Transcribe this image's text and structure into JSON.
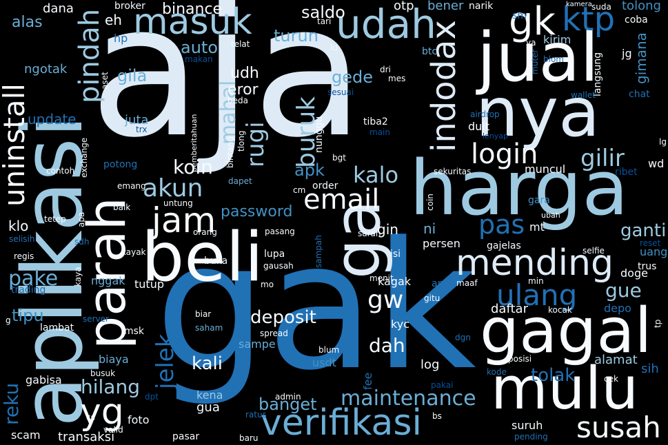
{
  "palette": {
    "white": "#f7fbff",
    "pale": "#deebf7",
    "light": "#9ecae1",
    "mid": "#6baed6",
    "blue": "#4292c6",
    "deep": "#2171b5",
    "navy": "#08519c",
    "dark": "#08306b"
  },
  "words": [
    {
      "text": "aja",
      "color": "pale"
    },
    {
      "text": "gak",
      "color": "deep"
    },
    {
      "text": "harga",
      "color": "light"
    },
    {
      "text": "aplikasi",
      "color": "light"
    },
    {
      "text": "beli",
      "color": "white"
    },
    {
      "text": "nya",
      "color": "pale"
    },
    {
      "text": "jual",
      "color": "white"
    },
    {
      "text": "gagal",
      "color": "white"
    },
    {
      "text": "mulu",
      "color": "white"
    },
    {
      "text": "parah",
      "color": "white"
    },
    {
      "text": "verifikasi",
      "color": "mid"
    },
    {
      "text": "mending",
      "color": "pale"
    },
    {
      "text": "udah",
      "color": "light"
    },
    {
      "text": "masuk",
      "color": "light"
    },
    {
      "text": "ga",
      "color": "pale"
    },
    {
      "text": "indodax",
      "color": "pale"
    },
    {
      "text": "gk",
      "color": "white"
    },
    {
      "text": "ktp",
      "color": "deep"
    },
    {
      "text": "uninstall",
      "color": "white"
    },
    {
      "text": "pindah",
      "color": "light"
    },
    {
      "text": "susah",
      "color": "white"
    },
    {
      "text": "yg",
      "color": "white"
    },
    {
      "text": "jam",
      "color": "white"
    },
    {
      "text": "email",
      "color": "white"
    },
    {
      "text": "akun",
      "color": "light"
    },
    {
      "text": "maintenance",
      "color": "mid"
    },
    {
      "text": "login",
      "color": "white"
    },
    {
      "text": "ulang",
      "color": "deep"
    },
    {
      "text": "gw",
      "color": "white"
    },
    {
      "text": "rugi",
      "color": "light"
    },
    {
      "text": "jelek",
      "color": "deep"
    },
    {
      "text": "pas",
      "color": "deep"
    },
    {
      "text": "buruk",
      "color": "light"
    },
    {
      "text": "gilir",
      "color": "light"
    },
    {
      "text": "hilang",
      "color": "light"
    },
    {
      "text": "kalo",
      "color": "light"
    },
    {
      "text": "koin",
      "color": "white"
    },
    {
      "text": "mahal",
      "color": "light"
    },
    {
      "text": "deposit",
      "color": "white"
    },
    {
      "text": "banget",
      "color": "mid"
    },
    {
      "text": "ganti",
      "color": "light"
    },
    {
      "text": "reku",
      "color": "deep"
    },
    {
      "text": "pake",
      "color": "mid"
    },
    {
      "text": "password",
      "color": "blue"
    },
    {
      "text": "dah",
      "color": "white"
    },
    {
      "text": "kali",
      "color": "white"
    },
    {
      "text": "apk",
      "color": "blue"
    },
    {
      "text": "gue",
      "color": "light"
    },
    {
      "text": "tolak",
      "color": "deep"
    },
    {
      "text": "gila",
      "color": "mid"
    },
    {
      "text": "auto",
      "color": "mid"
    },
    {
      "text": "turun",
      "color": "mid"
    },
    {
      "text": "saldo",
      "color": "white"
    },
    {
      "text": "binance",
      "color": "white"
    },
    {
      "text": "gede",
      "color": "mid"
    },
    {
      "text": "udh",
      "color": "white"
    },
    {
      "text": "eror",
      "color": "white"
    },
    {
      "text": "tipu",
      "color": "blue"
    },
    {
      "text": "alas",
      "color": "mid"
    },
    {
      "text": "dana",
      "color": "white"
    },
    {
      "text": "ngotak",
      "color": "mid"
    },
    {
      "text": "update",
      "color": "deep"
    },
    {
      "text": "eh",
      "color": "white"
    },
    {
      "text": "hp",
      "color": "deep"
    },
    {
      "text": "broker",
      "color": "white"
    },
    {
      "text": "otp",
      "color": "white"
    },
    {
      "text": "bener",
      "color": "mid"
    },
    {
      "text": "narik",
      "color": "white"
    },
    {
      "text": "sm",
      "color": "deep"
    },
    {
      "text": "tolong",
      "color": "blue"
    },
    {
      "text": "coba",
      "color": "white"
    },
    {
      "text": "kamera",
      "color": "white"
    },
    {
      "text": "suda",
      "color": "white"
    },
    {
      "text": "kirim",
      "color": "light"
    },
    {
      "text": "btc",
      "color": "mid"
    },
    {
      "text": "gimana",
      "color": "blue"
    },
    {
      "text": "jg",
      "color": "white"
    },
    {
      "text": "langsung",
      "color": "white"
    },
    {
      "text": "muter",
      "color": "deep"
    },
    {
      "text": "blom",
      "color": "deep"
    },
    {
      "text": "chat",
      "color": "deep"
    },
    {
      "text": "wallet",
      "color": "deep"
    },
    {
      "text": "airdrop",
      "color": "deep"
    },
    {
      "text": "lenyap",
      "color": "navy"
    },
    {
      "text": "duit",
      "color": "white"
    },
    {
      "text": "muncul",
      "color": "white"
    },
    {
      "text": "sekuritas",
      "color": "white"
    },
    {
      "text": "ribet",
      "color": "navy"
    },
    {
      "text": "wd",
      "color": "white"
    },
    {
      "text": "lg",
      "color": "white"
    },
    {
      "text": "gara",
      "color": "blue"
    },
    {
      "text": "ubah",
      "color": "white"
    },
    {
      "text": "mt",
      "color": "white"
    },
    {
      "text": "reset",
      "color": "navy"
    },
    {
      "text": "uang",
      "color": "blue"
    },
    {
      "text": "selfie",
      "color": "white"
    },
    {
      "text": "trus",
      "color": "white"
    },
    {
      "text": "doge",
      "color": "white"
    },
    {
      "text": "min",
      "color": "white"
    },
    {
      "text": "depo",
      "color": "deep"
    },
    {
      "text": "tp",
      "color": "white"
    },
    {
      "text": "alamat",
      "color": "light"
    },
    {
      "text": "sih",
      "color": "deep"
    },
    {
      "text": "cek",
      "color": "white"
    },
    {
      "text": "kocak",
      "color": "white"
    },
    {
      "text": "daftar",
      "color": "white"
    },
    {
      "text": "aneh",
      "color": "deep"
    },
    {
      "text": "maaf",
      "color": "white"
    },
    {
      "text": "gitu",
      "color": "white"
    },
    {
      "text": "kagak",
      "color": "white"
    },
    {
      "text": "persen",
      "color": "white"
    },
    {
      "text": "gajelas",
      "color": "white"
    },
    {
      "text": "ni",
      "color": "mid"
    },
    {
      "text": "gin",
      "color": "white"
    },
    {
      "text": "log",
      "color": "white"
    },
    {
      "text": "fee",
      "color": "deep"
    },
    {
      "text": "usdt",
      "color": "blue"
    },
    {
      "text": "blum",
      "color": "white"
    },
    {
      "text": "kyc",
      "color": "white"
    },
    {
      "text": "isi",
      "color": "white"
    },
    {
      "text": "menit",
      "color": "white"
    },
    {
      "text": "sampah",
      "color": "deep"
    },
    {
      "text": "saran",
      "color": "white"
    },
    {
      "text": "coin",
      "color": "white"
    },
    {
      "text": "posisi",
      "color": "white"
    },
    {
      "text": "kode",
      "color": "deep"
    },
    {
      "text": "pakai",
      "color": "navy"
    },
    {
      "text": "dgn",
      "color": "deep"
    },
    {
      "text": "bs",
      "color": "white"
    },
    {
      "text": "pending",
      "color": "deep"
    },
    {
      "text": "suruh",
      "color": "white"
    },
    {
      "text": "sampe",
      "color": "mid"
    },
    {
      "text": "spread",
      "color": "white"
    },
    {
      "text": "gua",
      "color": "white"
    },
    {
      "text": "kena",
      "color": "light"
    },
    {
      "text": "admin",
      "color": "white"
    },
    {
      "text": "ratus",
      "color": "deep"
    },
    {
      "text": "baru",
      "color": "white"
    },
    {
      "text": "pasar",
      "color": "white"
    },
    {
      "text": "transaksi",
      "color": "white"
    },
    {
      "text": "scam",
      "color": "white"
    },
    {
      "text": "cs",
      "color": "white"
    },
    {
      "text": "valid",
      "color": "white"
    },
    {
      "text": "foto",
      "color": "white"
    },
    {
      "text": "dpt",
      "color": "navy"
    },
    {
      "text": "busuk",
      "color": "white"
    },
    {
      "text": "gabisa",
      "color": "white"
    },
    {
      "text": "biaya",
      "color": "mid"
    },
    {
      "text": "msk",
      "color": "white"
    },
    {
      "text": "lambat",
      "color": "white"
    },
    {
      "text": "server",
      "color": "deep"
    },
    {
      "text": "biar",
      "color": "white"
    },
    {
      "text": "saham",
      "color": "mid"
    },
    {
      "text": "g",
      "color": "white"
    },
    {
      "text": "trading",
      "color": "deep"
    },
    {
      "text": "regis",
      "color": "white"
    },
    {
      "text": "kaya",
      "color": "white"
    },
    {
      "text": "nggak",
      "color": "mid"
    },
    {
      "text": "tutup",
      "color": "white"
    },
    {
      "text": "kayak",
      "color": "white"
    },
    {
      "text": "sdh",
      "color": "deep"
    },
    {
      "text": "selisih",
      "color": "deep"
    },
    {
      "text": "tetep",
      "color": "white"
    },
    {
      "text": "apa",
      "color": "white"
    },
    {
      "text": "buka",
      "color": "white"
    },
    {
      "text": "mo",
      "color": "white"
    },
    {
      "text": "lupa",
      "color": "white"
    },
    {
      "text": "gausah",
      "color": "white"
    },
    {
      "text": "pasang",
      "color": "white"
    },
    {
      "text": "orang",
      "color": "white"
    },
    {
      "text": "untung",
      "color": "white"
    },
    {
      "text": "baik",
      "color": "white"
    },
    {
      "text": "emang",
      "color": "white"
    },
    {
      "text": "klo",
      "color": "white"
    },
    {
      "text": "cm",
      "color": "white"
    },
    {
      "text": "order",
      "color": "white"
    },
    {
      "text": "dapet",
      "color": "mid"
    },
    {
      "text": "potong",
      "color": "deep"
    },
    {
      "text": "contoh",
      "color": "white"
    },
    {
      "text": "exchange",
      "color": "white"
    },
    {
      "text": "bintang",
      "color": "white"
    },
    {
      "text": "tlong",
      "color": "white"
    },
    {
      "text": "pemberitahuan",
      "color": "white"
    },
    {
      "text": "juta",
      "color": "mid"
    },
    {
      "text": "trx",
      "color": "navy"
    },
    {
      "text": "beda",
      "color": "white"
    },
    {
      "text": "nunggu",
      "color": "white"
    },
    {
      "text": "bgt",
      "color": "white"
    },
    {
      "text": "main",
      "color": "navy"
    },
    {
      "text": "tiba2",
      "color": "white"
    },
    {
      "text": "sesuai",
      "color": "navy"
    },
    {
      "text": "dri",
      "color": "white"
    },
    {
      "text": "mes",
      "color": "white"
    },
    {
      "text": "aset",
      "color": "white"
    },
    {
      "text": "makan",
      "color": "navy"
    },
    {
      "text": "lu",
      "color": "white"
    },
    {
      "text": "telat",
      "color": "white"
    },
    {
      "text": "tari",
      "color": "white"
    },
    {
      "text": "ya",
      "color": "white"
    },
    {
      "text": "sm",
      "color": "deep"
    }
  ]
}
